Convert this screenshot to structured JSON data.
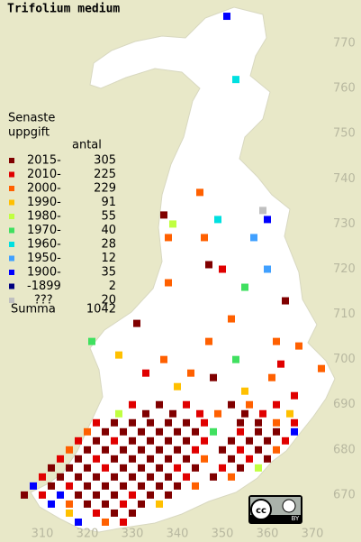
{
  "title": "Trifolium medium",
  "legend": {
    "heading": [
      "Senaste",
      "uppgift"
    ],
    "count_heading": "antal",
    "entries": [
      {
        "label": "2015-",
        "count": 305,
        "color": "#800000"
      },
      {
        "label": "2010-",
        "count": 225,
        "color": "#e00000"
      },
      {
        "label": "2000-",
        "count": 229,
        "color": "#ff6000"
      },
      {
        "label": "1990-",
        "count": 91,
        "color": "#ffc000"
      },
      {
        "label": "1980-",
        "count": 55,
        "color": "#c0ff40"
      },
      {
        "label": "1970-",
        "count": 40,
        "color": "#40e060"
      },
      {
        "label": "1960-",
        "count": 28,
        "color": "#00e0e0"
      },
      {
        "label": "1950-",
        "count": 12,
        "color": "#40a0ff"
      },
      {
        "label": "1900-",
        "count": 35,
        "color": "#0000ff"
      },
      {
        "label": "-1899",
        "count": 2,
        "color": "#000080"
      },
      {
        "label": "???",
        "count": 20,
        "color": "#c0c0c0"
      }
    ],
    "total_label": "Summa",
    "total": 1042
  },
  "xticks": [
    310,
    320,
    330,
    340,
    350,
    360,
    370
  ],
  "yticks": [
    670,
    680,
    690,
    700,
    710,
    720,
    730,
    740,
    750,
    760,
    770
  ],
  "xlim": [
    300.6,
    380.8
  ],
  "ylim": [
    659.6,
    779.6
  ],
  "license_label": "BY",
  "squares": [
    [
      351,
      776,
      8
    ],
    [
      353,
      762,
      6
    ],
    [
      345,
      737,
      2
    ],
    [
      337,
      732,
      0
    ],
    [
      339,
      730,
      4
    ],
    [
      349,
      731,
      6
    ],
    [
      359,
      733,
      10
    ],
    [
      360,
      731,
      8
    ],
    [
      357,
      727,
      7
    ],
    [
      346,
      727,
      2
    ],
    [
      338,
      727,
      2
    ],
    [
      347,
      721,
      0
    ],
    [
      350,
      720,
      1
    ],
    [
      360,
      720,
      7
    ],
    [
      355,
      716,
      5
    ],
    [
      338,
      717,
      2
    ],
    [
      364,
      713,
      0
    ],
    [
      352,
      709,
      2
    ],
    [
      331,
      708,
      0
    ],
    [
      321,
      704,
      5
    ],
    [
      347,
      704,
      2
    ],
    [
      362,
      704,
      2
    ],
    [
      367,
      703,
      2
    ],
    [
      327,
      701,
      3
    ],
    [
      337,
      700,
      2
    ],
    [
      353,
      700,
      5
    ],
    [
      363,
      699,
      1
    ],
    [
      372,
      698,
      2
    ],
    [
      343,
      697,
      2
    ],
    [
      333,
      697,
      1
    ],
    [
      348,
      696,
      0
    ],
    [
      361,
      696,
      2
    ],
    [
      355,
      693,
      3
    ],
    [
      366,
      692,
      1
    ],
    [
      340,
      694,
      3
    ],
    [
      330,
      690,
      1
    ],
    [
      336,
      690,
      0
    ],
    [
      342,
      690,
      1
    ],
    [
      352,
      690,
      0
    ],
    [
      356,
      690,
      2
    ],
    [
      362,
      690,
      1
    ],
    [
      327,
      688,
      4
    ],
    [
      333,
      688,
      0
    ],
    [
      339,
      688,
      0
    ],
    [
      345,
      688,
      1
    ],
    [
      349,
      688,
      2
    ],
    [
      355,
      688,
      0
    ],
    [
      359,
      688,
      1
    ],
    [
      365,
      688,
      3
    ],
    [
      322,
      686,
      1
    ],
    [
      326,
      686,
      0
    ],
    [
      330,
      686,
      0
    ],
    [
      334,
      686,
      0
    ],
    [
      338,
      686,
      0
    ],
    [
      342,
      686,
      0
    ],
    [
      346,
      686,
      1
    ],
    [
      354,
      686,
      0
    ],
    [
      358,
      686,
      0
    ],
    [
      362,
      686,
      2
    ],
    [
      366,
      686,
      1
    ],
    [
      320,
      684,
      2
    ],
    [
      324,
      684,
      0
    ],
    [
      328,
      684,
      0
    ],
    [
      332,
      684,
      0
    ],
    [
      336,
      684,
      0
    ],
    [
      340,
      684,
      0
    ],
    [
      344,
      684,
      0
    ],
    [
      348,
      684,
      5
    ],
    [
      354,
      684,
      1
    ],
    [
      358,
      684,
      0
    ],
    [
      362,
      684,
      0
    ],
    [
      366,
      684,
      8
    ],
    [
      318,
      682,
      1
    ],
    [
      322,
      682,
      0
    ],
    [
      326,
      682,
      1
    ],
    [
      330,
      682,
      0
    ],
    [
      334,
      682,
      0
    ],
    [
      338,
      682,
      0
    ],
    [
      342,
      682,
      0
    ],
    [
      346,
      682,
      1
    ],
    [
      352,
      682,
      0
    ],
    [
      356,
      682,
      0
    ],
    [
      360,
      682,
      0
    ],
    [
      364,
      682,
      1
    ],
    [
      316,
      680,
      2
    ],
    [
      320,
      680,
      0
    ],
    [
      324,
      680,
      0
    ],
    [
      328,
      680,
      0
    ],
    [
      332,
      680,
      0
    ],
    [
      336,
      680,
      0
    ],
    [
      340,
      680,
      0
    ],
    [
      344,
      680,
      1
    ],
    [
      350,
      680,
      0
    ],
    [
      354,
      680,
      1
    ],
    [
      358,
      680,
      0
    ],
    [
      362,
      680,
      2
    ],
    [
      314,
      678,
      1
    ],
    [
      318,
      678,
      0
    ],
    [
      322,
      678,
      1
    ],
    [
      326,
      678,
      0
    ],
    [
      330,
      678,
      0
    ],
    [
      334,
      678,
      0
    ],
    [
      338,
      678,
      0
    ],
    [
      342,
      678,
      0
    ],
    [
      346,
      678,
      2
    ],
    [
      352,
      678,
      0
    ],
    [
      356,
      678,
      1
    ],
    [
      360,
      678,
      0
    ],
    [
      312,
      676,
      0
    ],
    [
      316,
      676,
      0
    ],
    [
      320,
      676,
      0
    ],
    [
      324,
      676,
      1
    ],
    [
      328,
      676,
      0
    ],
    [
      332,
      676,
      0
    ],
    [
      336,
      676,
      0
    ],
    [
      340,
      676,
      1
    ],
    [
      344,
      676,
      0
    ],
    [
      350,
      676,
      1
    ],
    [
      354,
      676,
      0
    ],
    [
      358,
      676,
      4
    ],
    [
      310,
      674,
      1
    ],
    [
      314,
      674,
      0
    ],
    [
      318,
      674,
      0
    ],
    [
      322,
      674,
      0
    ],
    [
      326,
      674,
      0
    ],
    [
      330,
      674,
      0
    ],
    [
      334,
      674,
      0
    ],
    [
      338,
      674,
      0
    ],
    [
      342,
      674,
      1
    ],
    [
      348,
      674,
      0
    ],
    [
      352,
      674,
      2
    ],
    [
      308,
      672,
      8
    ],
    [
      312,
      672,
      0
    ],
    [
      316,
      672,
      1
    ],
    [
      320,
      672,
      0
    ],
    [
      324,
      672,
      0
    ],
    [
      328,
      672,
      0
    ],
    [
      332,
      672,
      0
    ],
    [
      336,
      672,
      0
    ],
    [
      340,
      672,
      0
    ],
    [
      344,
      672,
      2
    ],
    [
      306,
      670,
      0
    ],
    [
      310,
      670,
      1
    ],
    [
      314,
      670,
      8
    ],
    [
      318,
      670,
      0
    ],
    [
      322,
      670,
      0
    ],
    [
      326,
      670,
      0
    ],
    [
      330,
      670,
      1
    ],
    [
      334,
      670,
      0
    ],
    [
      338,
      670,
      0
    ],
    [
      312,
      668,
      8
    ],
    [
      316,
      668,
      2
    ],
    [
      320,
      668,
      0
    ],
    [
      324,
      668,
      0
    ],
    [
      328,
      668,
      1
    ],
    [
      332,
      668,
      0
    ],
    [
      336,
      668,
      3
    ],
    [
      316,
      666,
      3
    ],
    [
      322,
      666,
      1
    ],
    [
      326,
      666,
      0
    ],
    [
      330,
      666,
      0
    ],
    [
      318,
      664,
      8
    ],
    [
      324,
      664,
      2
    ],
    [
      328,
      664,
      1
    ]
  ]
}
